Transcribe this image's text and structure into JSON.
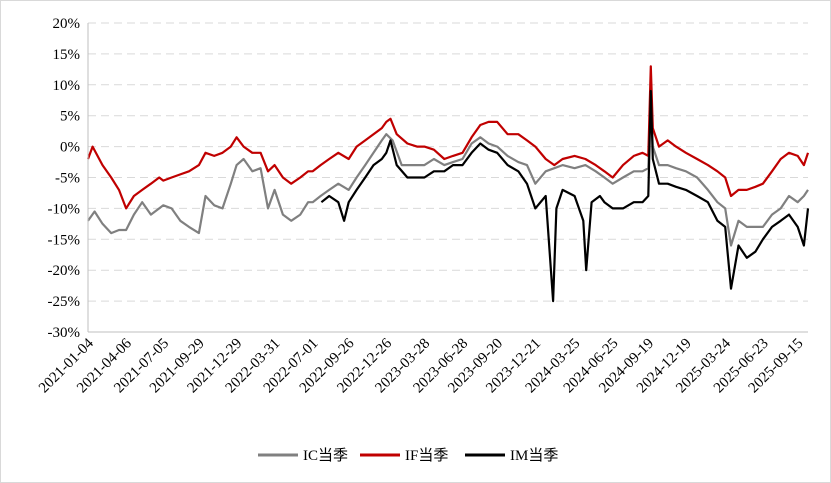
{
  "chart_data": {
    "type": "line",
    "title": "",
    "xlabel": "",
    "ylabel": "",
    "ylim": [
      -30,
      20
    ],
    "y_unit": "%",
    "grid": "horizontal dashed",
    "legend_position": "bottom",
    "yticks": [
      "20%",
      "15%",
      "10%",
      "5%",
      "0%",
      "-5%",
      "-10%",
      "-15%",
      "-20%",
      "-25%",
      "-30%"
    ],
    "ytick_values": [
      20,
      15,
      10,
      5,
      0,
      -5,
      -10,
      -15,
      -20,
      -25,
      -30
    ],
    "xticks": [
      "2021-01-04",
      "2021-04-06",
      "2021-07-05",
      "2021-09-29",
      "2021-12-29",
      "2022-03-31",
      "2022-07-01",
      "2022-09-26",
      "2022-12-26",
      "2023-03-28",
      "2023-06-28",
      "2023-09-20",
      "2023-12-21",
      "2024-03-25",
      "2024-06-25",
      "2024-09-19",
      "2024-12-19",
      "2025-03-24",
      "2025-06-23",
      "2025-09-15"
    ],
    "x_start": "2021-01-04",
    "x_end": "2025-10-10",
    "series": [
      {
        "name": "IC当季",
        "color": "#808080",
        "points": [
          [
            "2021-01-04",
            -12.0
          ],
          [
            "2021-01-20",
            -10.5
          ],
          [
            "2021-02-08",
            -12.5
          ],
          [
            "2021-03-01",
            -14.0
          ],
          [
            "2021-03-20",
            -13.5
          ],
          [
            "2021-04-06",
            -13.5
          ],
          [
            "2021-04-25",
            -11.0
          ],
          [
            "2021-05-15",
            -9.0
          ],
          [
            "2021-06-05",
            -11.0
          ],
          [
            "2021-06-25",
            -10.0
          ],
          [
            "2021-07-05",
            -9.5
          ],
          [
            "2021-07-25",
            -10.0
          ],
          [
            "2021-08-15",
            -12.0
          ],
          [
            "2021-09-05",
            -13.0
          ],
          [
            "2021-09-29",
            -14.0
          ],
          [
            "2021-10-15",
            -8.0
          ],
          [
            "2021-11-05",
            -9.5
          ],
          [
            "2021-11-25",
            -10.0
          ],
          [
            "2021-12-15",
            -6.0
          ],
          [
            "2021-12-29",
            -3.0
          ],
          [
            "2022-01-15",
            -2.0
          ],
          [
            "2022-02-05",
            -4.0
          ],
          [
            "2022-02-25",
            -3.5
          ],
          [
            "2022-03-15",
            -10.0
          ],
          [
            "2022-03-31",
            -7.0
          ],
          [
            "2022-04-20",
            -11.0
          ],
          [
            "2022-05-10",
            -12.0
          ],
          [
            "2022-06-01",
            -11.0
          ],
          [
            "2022-06-20",
            -9.0
          ],
          [
            "2022-07-01",
            -9.0
          ],
          [
            "2022-07-20",
            -8.0
          ],
          [
            "2022-08-10",
            -7.0
          ],
          [
            "2022-09-01",
            -6.0
          ],
          [
            "2022-09-26",
            -7.0
          ],
          [
            "2022-10-15",
            -5.0
          ],
          [
            "2022-11-05",
            -3.0
          ],
          [
            "2022-11-25",
            -1.0
          ],
          [
            "2022-12-15",
            1.0
          ],
          [
            "2022-12-26",
            2.0
          ],
          [
            "2023-01-10",
            1.0
          ],
          [
            "2023-02-01",
            -3.0
          ],
          [
            "2023-02-25",
            -3.0
          ],
          [
            "2023-03-28",
            -3.0
          ],
          [
            "2023-04-20",
            -2.0
          ],
          [
            "2023-05-15",
            -3.0
          ],
          [
            "2023-06-05",
            -2.5
          ],
          [
            "2023-06-28",
            -2.0
          ],
          [
            "2023-07-20",
            0.5
          ],
          [
            "2023-08-10",
            1.5
          ],
          [
            "2023-08-30",
            0.5
          ],
          [
            "2023-09-20",
            0.0
          ],
          [
            "2023-10-15",
            -1.5
          ],
          [
            "2023-11-10",
            -2.5
          ],
          [
            "2023-12-01",
            -3.0
          ],
          [
            "2023-12-21",
            -6.0
          ],
          [
            "2024-01-15",
            -4.0
          ],
          [
            "2024-02-05",
            -3.5
          ],
          [
            "2024-02-25",
            -3.0
          ],
          [
            "2024-03-25",
            -3.5
          ],
          [
            "2024-04-20",
            -3.0
          ],
          [
            "2024-05-15",
            -4.0
          ],
          [
            "2024-06-05",
            -5.0
          ],
          [
            "2024-06-25",
            -6.0
          ],
          [
            "2024-07-20",
            -5.0
          ],
          [
            "2024-08-15",
            -4.0
          ],
          [
            "2024-09-05",
            -4.0
          ],
          [
            "2024-09-19",
            -3.5
          ],
          [
            "2024-09-25",
            8.0
          ],
          [
            "2024-09-30",
            0.0
          ],
          [
            "2024-10-15",
            -3.0
          ],
          [
            "2024-11-05",
            -3.0
          ],
          [
            "2024-11-25",
            -3.5
          ],
          [
            "2024-12-19",
            -4.0
          ],
          [
            "2025-01-15",
            -5.0
          ],
          [
            "2025-02-10",
            -7.0
          ],
          [
            "2025-03-05",
            -9.0
          ],
          [
            "2025-03-24",
            -10.0
          ],
          [
            "2025-04-07",
            -16.0
          ],
          [
            "2025-04-25",
            -12.0
          ],
          [
            "2025-05-15",
            -13.0
          ],
          [
            "2025-06-05",
            -13.0
          ],
          [
            "2025-06-23",
            -13.0
          ],
          [
            "2025-07-15",
            -11.0
          ],
          [
            "2025-08-05",
            -10.0
          ],
          [
            "2025-08-25",
            -8.0
          ],
          [
            "2025-09-15",
            -9.0
          ],
          [
            "2025-09-30",
            -8.0
          ],
          [
            "2025-10-10",
            -7.0
          ]
        ]
      },
      {
        "name": "IF当季",
        "color": "#c00000",
        "points": [
          [
            "2021-01-04",
            -2.0
          ],
          [
            "2021-01-15",
            0.0
          ],
          [
            "2021-02-08",
            -3.0
          ],
          [
            "2021-03-01",
            -5.0
          ],
          [
            "2021-03-20",
            -7.0
          ],
          [
            "2021-04-06",
            -10.0
          ],
          [
            "2021-04-25",
            -8.0
          ],
          [
            "2021-05-15",
            -7.0
          ],
          [
            "2021-06-05",
            -6.0
          ],
          [
            "2021-06-25",
            -5.0
          ],
          [
            "2021-07-05",
            -5.5
          ],
          [
            "2021-07-25",
            -5.0
          ],
          [
            "2021-08-15",
            -4.5
          ],
          [
            "2021-09-05",
            -4.0
          ],
          [
            "2021-09-29",
            -3.0
          ],
          [
            "2021-10-15",
            -1.0
          ],
          [
            "2021-11-05",
            -1.5
          ],
          [
            "2021-11-25",
            -1.0
          ],
          [
            "2021-12-15",
            0.0
          ],
          [
            "2021-12-29",
            1.5
          ],
          [
            "2022-01-15",
            0.0
          ],
          [
            "2022-02-05",
            -1.0
          ],
          [
            "2022-02-25",
            -1.0
          ],
          [
            "2022-03-15",
            -4.0
          ],
          [
            "2022-03-31",
            -3.0
          ],
          [
            "2022-04-20",
            -5.0
          ],
          [
            "2022-05-10",
            -6.0
          ],
          [
            "2022-06-01",
            -5.0
          ],
          [
            "2022-06-20",
            -4.0
          ],
          [
            "2022-07-01",
            -4.0
          ],
          [
            "2022-07-20",
            -3.0
          ],
          [
            "2022-08-10",
            -2.0
          ],
          [
            "2022-09-01",
            -1.0
          ],
          [
            "2022-09-26",
            -2.0
          ],
          [
            "2022-10-15",
            0.0
          ],
          [
            "2022-11-05",
            1.0
          ],
          [
            "2022-11-25",
            2.0
          ],
          [
            "2022-12-15",
            3.0
          ],
          [
            "2022-12-26",
            4.0
          ],
          [
            "2023-01-05",
            4.5
          ],
          [
            "2023-01-20",
            2.0
          ],
          [
            "2023-02-15",
            0.5
          ],
          [
            "2023-03-10",
            0.0
          ],
          [
            "2023-03-28",
            0.0
          ],
          [
            "2023-04-20",
            -0.5
          ],
          [
            "2023-05-15",
            -2.0
          ],
          [
            "2023-06-05",
            -1.5
          ],
          [
            "2023-06-28",
            -1.0
          ],
          [
            "2023-07-20",
            1.5
          ],
          [
            "2023-08-10",
            3.5
          ],
          [
            "2023-08-30",
            4.0
          ],
          [
            "2023-09-20",
            4.0
          ],
          [
            "2023-10-15",
            2.0
          ],
          [
            "2023-11-10",
            2.0
          ],
          [
            "2023-12-01",
            1.0
          ],
          [
            "2023-12-21",
            0.0
          ],
          [
            "2024-01-15",
            -2.0
          ],
          [
            "2024-02-05",
            -3.0
          ],
          [
            "2024-02-25",
            -2.0
          ],
          [
            "2024-03-25",
            -1.5
          ],
          [
            "2024-04-20",
            -2.0
          ],
          [
            "2024-05-15",
            -3.0
          ],
          [
            "2024-06-05",
            -4.0
          ],
          [
            "2024-06-25",
            -5.0
          ],
          [
            "2024-07-20",
            -3.0
          ],
          [
            "2024-08-15",
            -1.5
          ],
          [
            "2024-09-05",
            -1.0
          ],
          [
            "2024-09-19",
            -1.5
          ],
          [
            "2024-09-25",
            13.0
          ],
          [
            "2024-09-30",
            3.0
          ],
          [
            "2024-10-15",
            0.0
          ],
          [
            "2024-11-05",
            1.0
          ],
          [
            "2024-11-25",
            0.0
          ],
          [
            "2024-12-19",
            -1.0
          ],
          [
            "2025-01-15",
            -2.0
          ],
          [
            "2025-02-10",
            -3.0
          ],
          [
            "2025-03-05",
            -4.0
          ],
          [
            "2025-03-24",
            -5.0
          ],
          [
            "2025-04-07",
            -8.0
          ],
          [
            "2025-04-25",
            -7.0
          ],
          [
            "2025-05-15",
            -7.0
          ],
          [
            "2025-06-05",
            -6.5
          ],
          [
            "2025-06-23",
            -6.0
          ],
          [
            "2025-07-15",
            -4.0
          ],
          [
            "2025-08-05",
            -2.0
          ],
          [
            "2025-08-25",
            -1.0
          ],
          [
            "2025-09-15",
            -1.5
          ],
          [
            "2025-09-30",
            -3.0
          ],
          [
            "2025-10-10",
            -1.0
          ]
        ]
      },
      {
        "name": "IM当季",
        "color": "#000000",
        "points": [
          [
            "2022-07-22",
            -9.0
          ],
          [
            "2022-08-10",
            -8.0
          ],
          [
            "2022-09-01",
            -9.0
          ],
          [
            "2022-09-15",
            -12.0
          ],
          [
            "2022-09-26",
            -9.0
          ],
          [
            "2022-10-15",
            -7.0
          ],
          [
            "2022-11-05",
            -5.0
          ],
          [
            "2022-11-25",
            -3.0
          ],
          [
            "2022-12-15",
            -2.0
          ],
          [
            "2022-12-26",
            -1.0
          ],
          [
            "2023-01-05",
            1.0
          ],
          [
            "2023-01-20",
            -3.0
          ],
          [
            "2023-02-15",
            -5.0
          ],
          [
            "2023-03-10",
            -5.0
          ],
          [
            "2023-03-28",
            -5.0
          ],
          [
            "2023-04-20",
            -4.0
          ],
          [
            "2023-05-15",
            -4.0
          ],
          [
            "2023-06-05",
            -3.0
          ],
          [
            "2023-06-28",
            -3.0
          ],
          [
            "2023-07-20",
            -1.0
          ],
          [
            "2023-08-10",
            0.5
          ],
          [
            "2023-08-30",
            -0.5
          ],
          [
            "2023-09-20",
            -1.0
          ],
          [
            "2023-10-15",
            -3.0
          ],
          [
            "2023-11-10",
            -4.0
          ],
          [
            "2023-12-01",
            -6.0
          ],
          [
            "2023-12-21",
            -10.0
          ],
          [
            "2024-01-15",
            -8.0
          ],
          [
            "2024-02-02",
            -25.0
          ],
          [
            "2024-02-10",
            -10.0
          ],
          [
            "2024-02-25",
            -7.0
          ],
          [
            "2024-03-25",
            -8.0
          ],
          [
            "2024-04-15",
            -12.0
          ],
          [
            "2024-04-22",
            -20.0
          ],
          [
            "2024-05-05",
            -9.0
          ],
          [
            "2024-05-25",
            -8.0
          ],
          [
            "2024-06-05",
            -9.0
          ],
          [
            "2024-06-25",
            -10.0
          ],
          [
            "2024-07-20",
            -10.0
          ],
          [
            "2024-08-15",
            -9.0
          ],
          [
            "2024-09-05",
            -9.0
          ],
          [
            "2024-09-19",
            -8.0
          ],
          [
            "2024-09-25",
            9.0
          ],
          [
            "2024-09-30",
            -2.0
          ],
          [
            "2024-10-15",
            -6.0
          ],
          [
            "2024-11-05",
            -6.0
          ],
          [
            "2024-11-25",
            -6.5
          ],
          [
            "2024-12-19",
            -7.0
          ],
          [
            "2025-01-15",
            -8.0
          ],
          [
            "2025-02-10",
            -9.0
          ],
          [
            "2025-03-05",
            -12.0
          ],
          [
            "2025-03-24",
            -13.0
          ],
          [
            "2025-04-07",
            -23.0
          ],
          [
            "2025-04-25",
            -16.0
          ],
          [
            "2025-05-15",
            -18.0
          ],
          [
            "2025-06-05",
            -17.0
          ],
          [
            "2025-06-23",
            -15.0
          ],
          [
            "2025-07-15",
            -13.0
          ],
          [
            "2025-08-05",
            -12.0
          ],
          [
            "2025-08-25",
            -11.0
          ],
          [
            "2025-09-15",
            -13.0
          ],
          [
            "2025-09-30",
            -16.0
          ],
          [
            "2025-10-10",
            -10.0
          ]
        ]
      }
    ]
  }
}
